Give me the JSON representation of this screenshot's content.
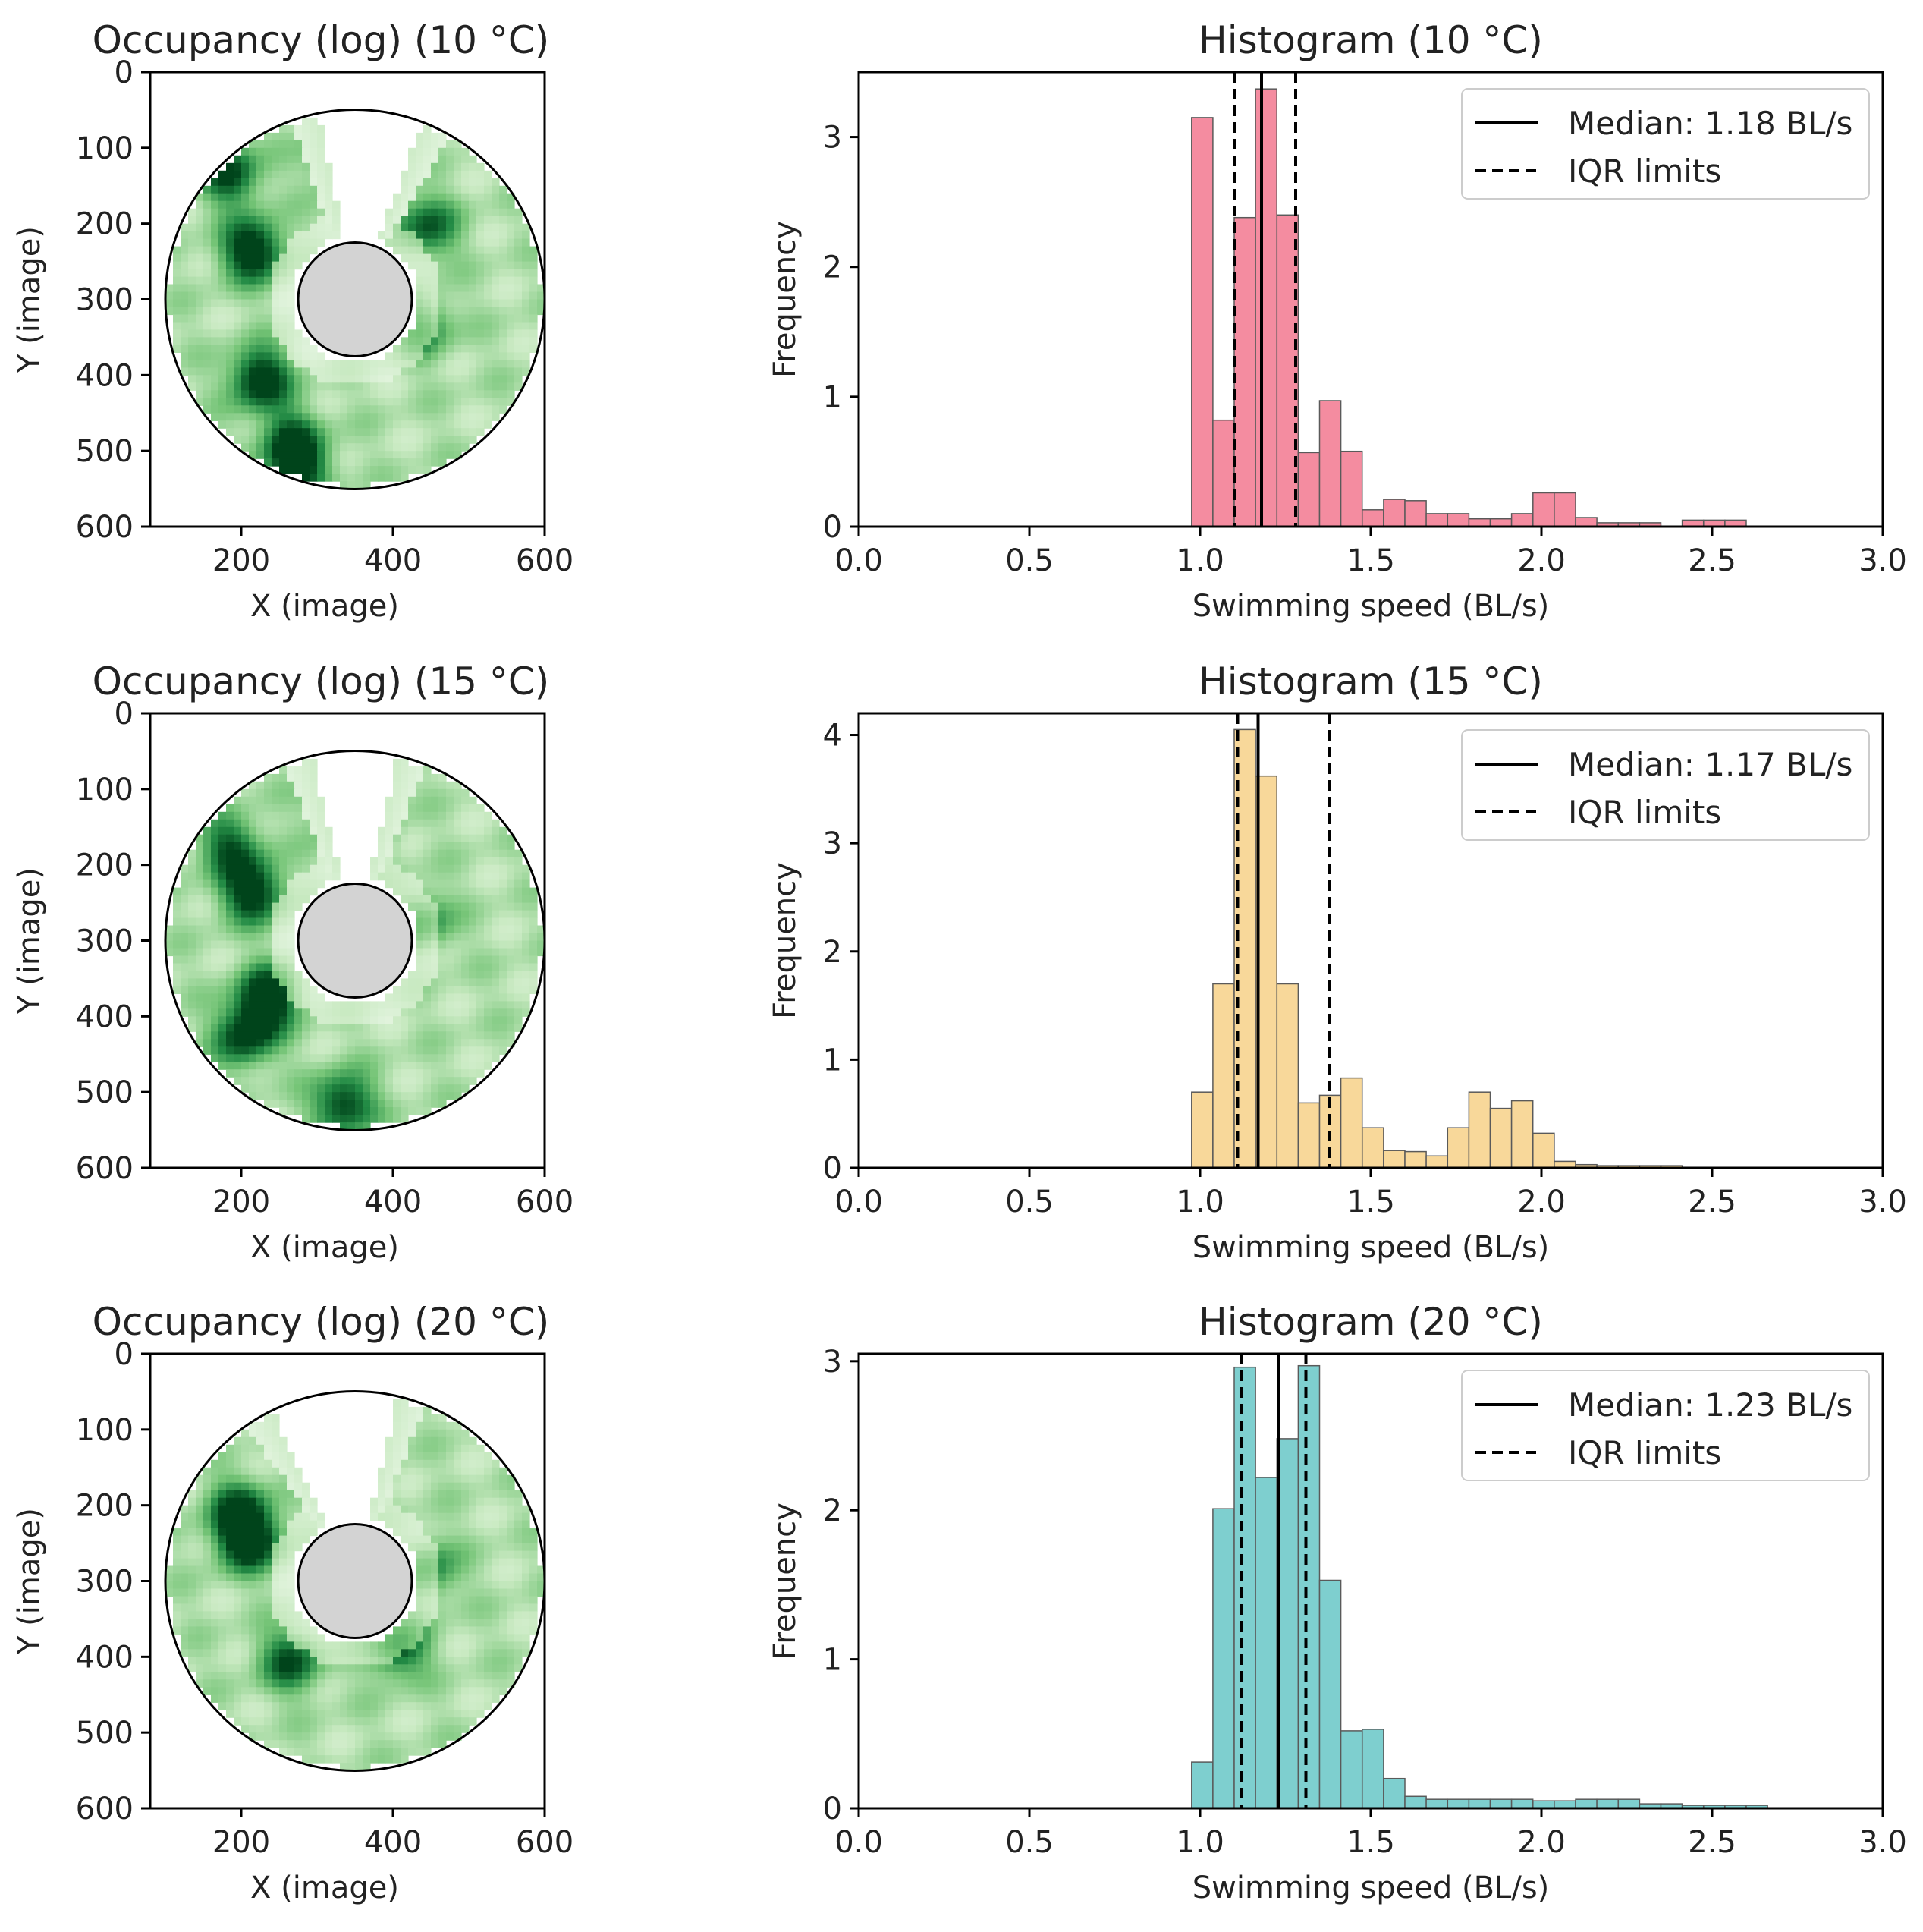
{
  "chart_data": [
    {
      "type": "heatmap",
      "title": "Occupancy (log) (10$^\\circ$C)",
      "title_display": "Occupancy (log) (10 °C)",
      "xlabel": "X (image)",
      "ylabel": "Y (image)",
      "xlim": [
        80,
        600
      ],
      "ylim": [
        600,
        0
      ],
      "xticks": [
        "200",
        "400",
        "600"
      ],
      "yticks": [
        "0",
        "100",
        "200",
        "300",
        "400",
        "500",
        "600"
      ],
      "arena": {
        "center": [
          350,
          300
        ],
        "outer_radius": 250,
        "inner_radius": 75
      },
      "colormap": "Greens",
      "open_sector_deg": [
        250,
        300
      ],
      "hotspots": [
        [
          210,
          230,
          0.9
        ],
        [
          330,
          100,
          0.85
        ],
        [
          360,
          150,
          0.8
        ],
        [
          220,
          400,
          0.85
        ],
        [
          260,
          480,
          0.6
        ],
        [
          440,
          200,
          0.6
        ],
        [
          180,
          130,
          0.7
        ],
        [
          430,
          330,
          0.55
        ],
        [
          270,
          520,
          0.7
        ]
      ]
    },
    {
      "type": "bar",
      "title": "Histogram (10$^\\circ$C)",
      "title_display": "Histogram (10 °C)",
      "xlabel": "Swimming speed (BL/s)",
      "ylabel": "Frequency",
      "xlim": [
        0.0,
        3.0
      ],
      "ylim": [
        0,
        3.5
      ],
      "xticks": [
        "0.0",
        "0.5",
        "1.0",
        "1.5",
        "2.0",
        "2.5",
        "3.0"
      ],
      "yticks": [
        "0",
        "1",
        "2",
        "3"
      ],
      "bar_color": "#f48ca0",
      "bin_start": 0.975,
      "bin_width": 0.0625,
      "values": [
        3.15,
        0.82,
        2.38,
        3.37,
        2.4,
        0.57,
        0.97,
        0.58,
        0.13,
        0.21,
        0.2,
        0.1,
        0.1,
        0.06,
        0.06,
        0.1,
        0.26,
        0.26,
        0.07,
        0.03,
        0.03,
        0.03,
        0.0,
        0.05,
        0.05,
        0.05,
        0.0
      ],
      "median": 1.18,
      "iqr": [
        1.1,
        1.28
      ],
      "legend": {
        "median_label": "Median: 1.18 BL/s",
        "iqr_label": "IQR limits",
        "position": "top-right"
      }
    },
    {
      "type": "heatmap",
      "title": "Occupancy (log) (15$^\\circ$C)",
      "title_display": "Occupancy (log) (15 °C)",
      "xlabel": "X (image)",
      "ylabel": "Y (image)",
      "xlim": [
        80,
        600
      ],
      "ylim": [
        600,
        0
      ],
      "xticks": [
        "200",
        "400",
        "600"
      ],
      "yticks": [
        "0",
        "100",
        "200",
        "300",
        "400",
        "500",
        "600"
      ],
      "arena": {
        "center": [
          350,
          300
        ],
        "outer_radius": 250,
        "inner_radius": 75
      },
      "colormap": "Greens",
      "open_sector_deg": [
        248,
        292
      ],
      "hotspots": [
        [
          210,
          230,
          0.85
        ],
        [
          330,
          100,
          0.8
        ],
        [
          350,
          140,
          0.75
        ],
        [
          230,
          370,
          0.9
        ],
        [
          200,
          420,
          0.75
        ],
        [
          330,
          510,
          0.75
        ],
        [
          430,
          270,
          0.55
        ],
        [
          180,
          170,
          0.6
        ]
      ]
    },
    {
      "type": "bar",
      "title": "Histogram (15$^\\circ$C)",
      "title_display": "Histogram (15 °C)",
      "xlabel": "Swimming speed (BL/s)",
      "ylabel": "Frequency",
      "xlim": [
        0.0,
        3.0
      ],
      "ylim": [
        0,
        4.2
      ],
      "xticks": [
        "0.0",
        "0.5",
        "1.0",
        "1.5",
        "2.0",
        "2.5",
        "3.0"
      ],
      "yticks": [
        "0",
        "1",
        "2",
        "3",
        "4"
      ],
      "bar_color": "#f8d89a",
      "bin_start": 0.975,
      "bin_width": 0.0625,
      "values": [
        0.7,
        1.7,
        4.05,
        3.62,
        1.7,
        0.6,
        0.67,
        0.83,
        0.37,
        0.16,
        0.15,
        0.11,
        0.37,
        0.7,
        0.55,
        0.62,
        0.32,
        0.06,
        0.03,
        0.02,
        0.02,
        0.02,
        0.02,
        0.0
      ],
      "median": 1.17,
      "iqr": [
        1.11,
        1.38
      ],
      "legend": {
        "median_label": "Median: 1.17 BL/s",
        "iqr_label": "IQR limits",
        "position": "top-right"
      }
    },
    {
      "type": "heatmap",
      "title": "Occupancy (log) (20$^\\circ$C)",
      "title_display": "Occupancy (log) (20 °C)",
      "xlabel": "X (image)",
      "ylabel": "Y (image)",
      "xlim": [
        80,
        600
      ],
      "ylim": [
        600,
        0
      ],
      "xticks": [
        "200",
        "400",
        "600"
      ],
      "yticks": [
        "0",
        "100",
        "200",
        "300",
        "400",
        "500",
        "600"
      ],
      "arena": {
        "center": [
          350,
          300
        ],
        "outer_radius": 250,
        "inner_radius": 75
      },
      "colormap": "Greens",
      "open_sector_deg": [
        235,
        292
      ],
      "hotspots": [
        [
          205,
          240,
          0.95
        ],
        [
          340,
          130,
          0.8
        ],
        [
          400,
          380,
          0.7
        ],
        [
          260,
          400,
          0.65
        ],
        [
          440,
          280,
          0.5
        ],
        [
          190,
          200,
          0.6
        ]
      ]
    },
    {
      "type": "bar",
      "title": "Histogram (20$^\\circ$C)",
      "title_display": "Histogram (20 °C)",
      "xlabel": "Swimming speed (BL/s)",
      "ylabel": "Frequency",
      "xlim": [
        0.0,
        3.0
      ],
      "ylim": [
        0,
        3.05
      ],
      "xticks": [
        "0.0",
        "0.5",
        "1.0",
        "1.5",
        "2.0",
        "2.5",
        "3.0"
      ],
      "yticks": [
        "0",
        "1",
        "2",
        "3"
      ],
      "bar_color": "#7ecfcf",
      "bin_start": 0.975,
      "bin_width": 0.0625,
      "values": [
        0.31,
        2.01,
        2.96,
        2.22,
        2.48,
        2.97,
        1.53,
        0.52,
        0.53,
        0.2,
        0.08,
        0.06,
        0.06,
        0.06,
        0.06,
        0.06,
        0.05,
        0.05,
        0.06,
        0.06,
        0.06,
        0.03,
        0.03,
        0.02,
        0.02,
        0.02,
        0.02,
        0.0
      ],
      "median": 1.23,
      "iqr": [
        1.12,
        1.31
      ],
      "legend": {
        "median_label": "Median: 1.23 BL/s",
        "iqr_label": "IQR limits",
        "position": "top-right"
      }
    }
  ]
}
